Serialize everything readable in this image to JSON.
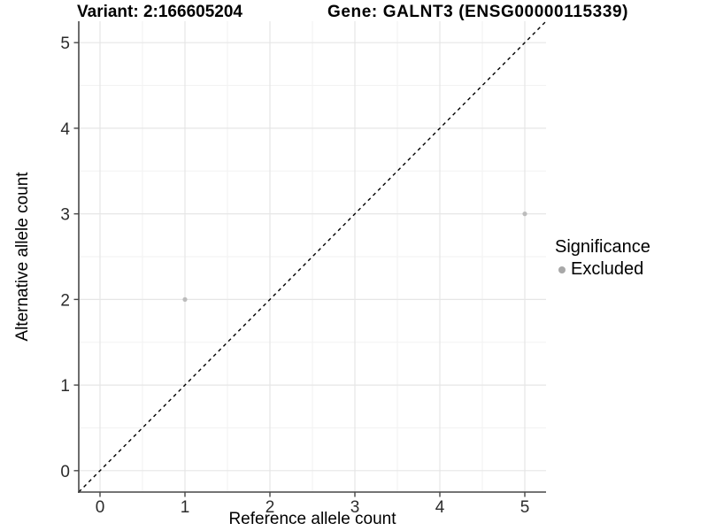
{
  "chart_data": {
    "type": "scatter",
    "title_left": "Variant: 2:166605204",
    "title_right": "Gene: GALNT3 (ENSG00000115339)",
    "xlabel": "Reference allele count",
    "ylabel": "Alternative allele count",
    "xlim": [
      -0.25,
      5.25
    ],
    "ylim": [
      -0.25,
      5.25
    ],
    "xticks": [
      0,
      1,
      2,
      3,
      4,
      5
    ],
    "yticks": [
      0,
      1,
      2,
      3,
      4,
      5
    ],
    "minor_gridlines_at": [
      0.5,
      1.5,
      2.5,
      3.5,
      4.5
    ],
    "grid": "on",
    "series": [
      {
        "name": "Excluded",
        "marker_color": "#bcbcbc",
        "marker_radius": 2.6,
        "points": [
          {
            "x": 1,
            "y": 2
          },
          {
            "x": 5,
            "y": 3
          }
        ]
      }
    ],
    "reference_line": {
      "kind": "identity y=x",
      "from": [
        -0.25,
        -0.25
      ],
      "to": [
        5.25,
        5.25
      ],
      "style": "dashed",
      "color": "#000000"
    },
    "legend": {
      "title": "Significance",
      "position": "right",
      "items": [
        {
          "label": "Excluded",
          "marker_color": "#a8a8a8"
        }
      ]
    },
    "colors": {
      "background": "#ffffff",
      "major_grid": "#e6e6e6",
      "minor_grid": "#f2f2f2",
      "axis_line": "#474747",
      "tick_text": "#2b2b2b"
    }
  }
}
